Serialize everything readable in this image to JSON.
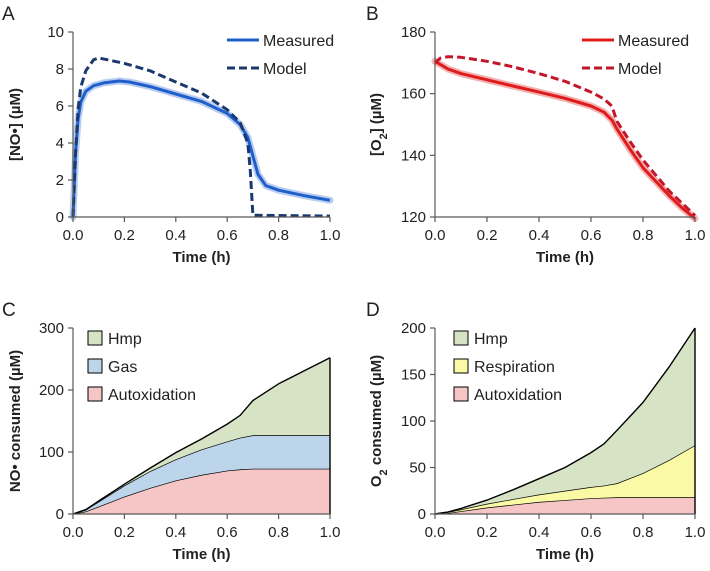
{
  "chart_data": [
    {
      "id": "A",
      "panel_label": "A",
      "type": "line",
      "xlabel": "Time (h)",
      "ylabel": "[NO•] (µM)",
      "xlim": [
        0,
        1
      ],
      "ylim": [
        0,
        10
      ],
      "xticks": [
        "0.0",
        "0.2",
        "0.4",
        "0.6",
        "0.8",
        "1.0"
      ],
      "yticks": [
        "0",
        "2",
        "4",
        "6",
        "8",
        "10"
      ],
      "legend_position": "top-right",
      "series": [
        {
          "name": "Measured",
          "style": "solid",
          "color": "#1f5fcc",
          "band_color": "#b9cdf0",
          "points": [
            [
              0,
              0
            ],
            [
              0.01,
              3.5
            ],
            [
              0.02,
              5.3
            ],
            [
              0.03,
              6.2
            ],
            [
              0.05,
              6.8
            ],
            [
              0.08,
              7.1
            ],
            [
              0.12,
              7.25
            ],
            [
              0.18,
              7.35
            ],
            [
              0.22,
              7.3
            ],
            [
              0.3,
              7.05
            ],
            [
              0.4,
              6.65
            ],
            [
              0.5,
              6.25
            ],
            [
              0.6,
              5.6
            ],
            [
              0.65,
              5.0
            ],
            [
              0.68,
              4.3
            ],
            [
              0.7,
              3.3
            ],
            [
              0.72,
              2.3
            ],
            [
              0.75,
              1.7
            ],
            [
              0.8,
              1.45
            ],
            [
              0.9,
              1.15
            ],
            [
              1.0,
              0.9
            ]
          ]
        },
        {
          "name": "Model",
          "style": "dashed",
          "color": "#1a3a6e",
          "points": [
            [
              0,
              0
            ],
            [
              0.01,
              3.5
            ],
            [
              0.02,
              5.8
            ],
            [
              0.03,
              7.0
            ],
            [
              0.05,
              7.9
            ],
            [
              0.08,
              8.5
            ],
            [
              0.1,
              8.6
            ],
            [
              0.2,
              8.3
            ],
            [
              0.3,
              7.9
            ],
            [
              0.4,
              7.3
            ],
            [
              0.5,
              6.7
            ],
            [
              0.6,
              5.8
            ],
            [
              0.65,
              5.1
            ],
            [
              0.68,
              4.0
            ],
            [
              0.69,
              2.5
            ],
            [
              0.7,
              0.1
            ],
            [
              1.0,
              0.05
            ]
          ]
        }
      ]
    },
    {
      "id": "B",
      "panel_label": "B",
      "type": "line",
      "xlabel": "Time (h)",
      "ylabel_main": "[O",
      "ylabel_sub": "2",
      "ylabel_end": "] (µM)",
      "xlim": [
        0,
        1
      ],
      "ylim": [
        120,
        180
      ],
      "xticks": [
        "0.0",
        "0.2",
        "0.4",
        "0.6",
        "0.8",
        "1.0"
      ],
      "yticks": [
        "120",
        "140",
        "160",
        "180"
      ],
      "legend_position": "top-right",
      "series": [
        {
          "name": "Measured",
          "style": "solid",
          "color": "#e01b1b",
          "band_color": "#f3b3b3",
          "points": [
            [
              0,
              170.5
            ],
            [
              0.05,
              168
            ],
            [
              0.1,
              166.5
            ],
            [
              0.2,
              164.5
            ],
            [
              0.3,
              162.5
            ],
            [
              0.4,
              160.5
            ],
            [
              0.5,
              158.5
            ],
            [
              0.6,
              156
            ],
            [
              0.65,
              154
            ],
            [
              0.68,
              151.5
            ],
            [
              0.7,
              148.5
            ],
            [
              0.75,
              142
            ],
            [
              0.8,
              136
            ],
            [
              0.9,
              127
            ],
            [
              0.95,
              123
            ],
            [
              1.0,
              119.5
            ]
          ]
        },
        {
          "name": "Model",
          "style": "dashed",
          "color": "#c4162a",
          "points": [
            [
              0,
              170
            ],
            [
              0.02,
              171.5
            ],
            [
              0.05,
              172
            ],
            [
              0.1,
              171.8
            ],
            [
              0.2,
              170.5
            ],
            [
              0.3,
              168.7
            ],
            [
              0.4,
              166.5
            ],
            [
              0.5,
              164
            ],
            [
              0.6,
              160.5
            ],
            [
              0.65,
              158.3
            ],
            [
              0.68,
              156
            ],
            [
              0.7,
              151
            ],
            [
              0.75,
              144.5
            ],
            [
              0.8,
              138.5
            ],
            [
              0.9,
              128.5
            ],
            [
              1.0,
              120.5
            ]
          ]
        }
      ]
    },
    {
      "id": "C",
      "panel_label": "C",
      "type": "area",
      "stacked": true,
      "xlabel": "Time (h)",
      "ylabel": "NO• consumed (µM)",
      "xlim": [
        0,
        1
      ],
      "ylim": [
        0,
        300
      ],
      "xticks": [
        "0.0",
        "0.2",
        "0.4",
        "0.6",
        "0.8",
        "1.0"
      ],
      "yticks": [
        "0",
        "100",
        "200",
        "300"
      ],
      "legend_position": "top-left",
      "x": [
        0,
        0.05,
        0.1,
        0.2,
        0.3,
        0.4,
        0.5,
        0.6,
        0.65,
        0.7,
        0.8,
        0.9,
        1.0
      ],
      "series": [
        {
          "name": "Autoxidation",
          "color": "#f6c6c6",
          "values": [
            0,
            4,
            12,
            28,
            42,
            54,
            63,
            70,
            72,
            73,
            73,
            73,
            73
          ]
        },
        {
          "name": "Gas",
          "color": "#bcd5ea",
          "values": [
            0,
            3,
            8,
            18,
            27,
            34,
            41,
            47,
            51,
            54,
            54,
            54,
            54
          ]
        },
        {
          "name": "Hmp",
          "color": "#d6e3c5",
          "values": [
            0,
            0,
            1,
            2,
            5,
            11,
            17,
            28,
            36,
            56,
            83,
            104,
            125
          ]
        }
      ]
    },
    {
      "id": "D",
      "panel_label": "D",
      "type": "area",
      "stacked": true,
      "xlabel": "Time (h)",
      "ylabel_main": "O",
      "ylabel_sub": "2",
      "ylabel_end": " consumed (µM)",
      "xlim": [
        0,
        1
      ],
      "ylim": [
        0,
        200
      ],
      "xticks": [
        "0.0",
        "0.2",
        "0.4",
        "0.6",
        "0.8",
        "1.0"
      ],
      "yticks": [
        "0",
        "50",
        "100",
        "150",
        "200"
      ],
      "legend_position": "top-left",
      "x": [
        0,
        0.05,
        0.1,
        0.2,
        0.3,
        0.4,
        0.5,
        0.6,
        0.65,
        0.7,
        0.8,
        0.9,
        1.0
      ],
      "series": [
        {
          "name": "Autoxidation",
          "color": "#f6c6c6",
          "values": [
            0,
            1,
            3,
            7,
            10,
            13,
            15,
            17,
            17.5,
            18,
            18,
            18,
            18
          ]
        },
        {
          "name": "Respiration",
          "color": "#fafaa6",
          "values": [
            0,
            1,
            2,
            4,
            6,
            8,
            10,
            12,
            13,
            15,
            26,
            40,
            56
          ]
        },
        {
          "name": "Hmp",
          "color": "#d6e3c5",
          "values": [
            0,
            0,
            1,
            4,
            10,
            17,
            25,
            37,
            45,
            57,
            76,
            100,
            126
          ]
        }
      ]
    }
  ]
}
